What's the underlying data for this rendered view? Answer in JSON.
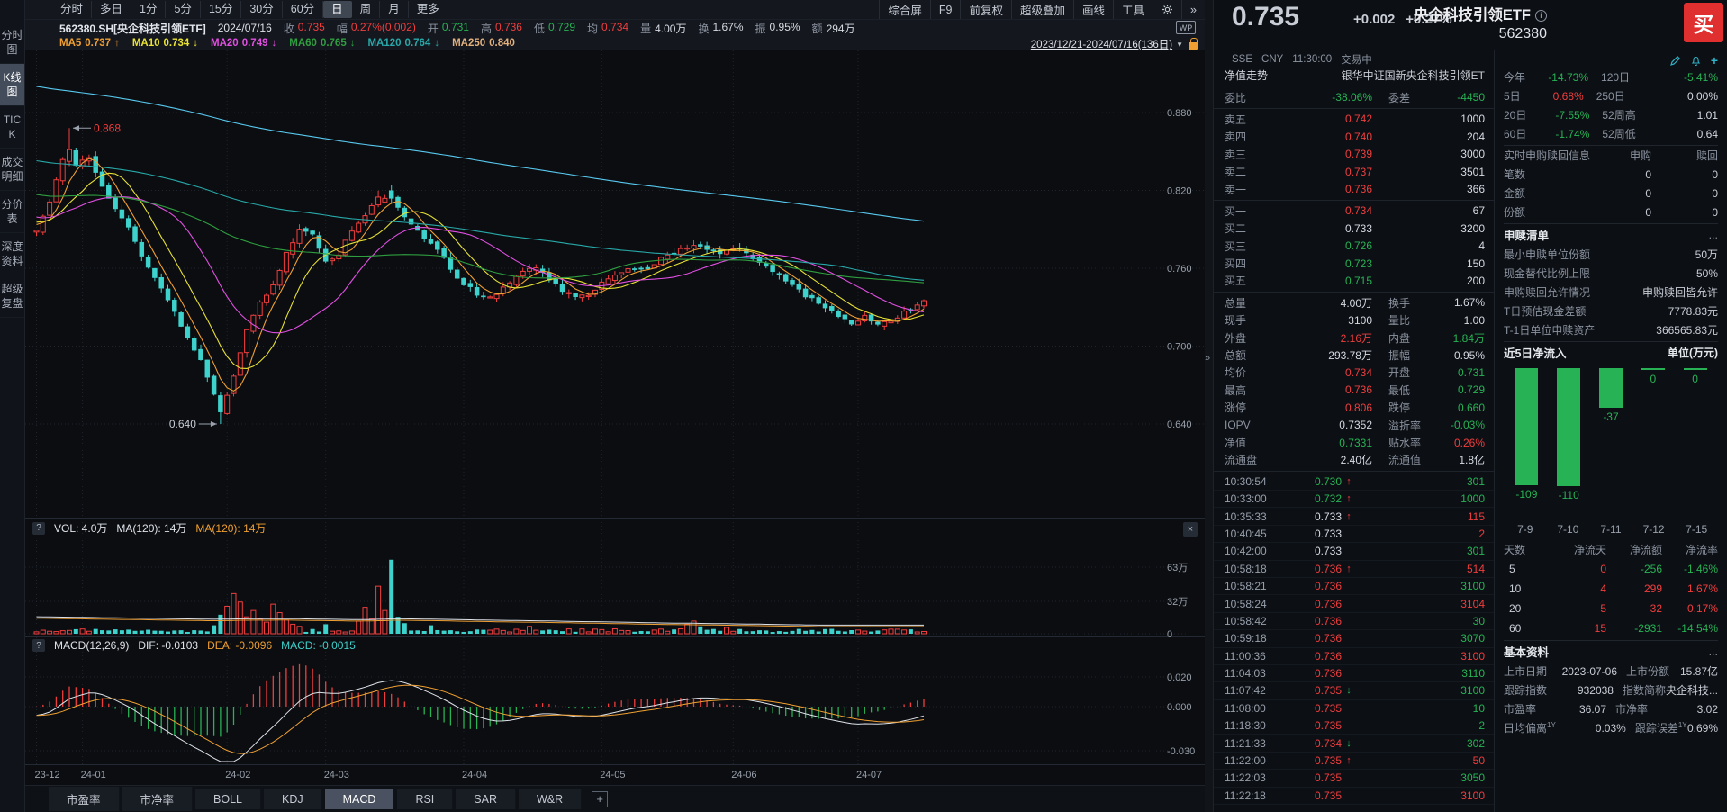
{
  "colors": {
    "red": "#f03e3e",
    "green": "#27b355",
    "teal": "#3ed2cc",
    "link": "#35b8cf",
    "orange": "#f0a032",
    "yellow": "#e8e234",
    "magenta": "#e14fe1",
    "ma_green": "#2f9e3f",
    "ma_teal": "#28a8a8",
    "ma_cyan": "#58c8ee",
    "peach": "#e2b27e",
    "white": "#d6dae2",
    "dim": "#8b93a0"
  },
  "glyphs": {
    "expander": "»",
    "plus": "+",
    "close": "×",
    "help": "?",
    "tri_down": "▼",
    "arrow_up": "↑",
    "arrow_down": "↓",
    "chev": "»"
  },
  "app": {
    "name_cn": "央企科技引领ETF",
    "code": "562380",
    "buy_label": "买",
    "price": "0.735",
    "change": "+0.002",
    "change_pct": "+0.27%",
    "exchange": "SSE",
    "currency": "CNY",
    "time": "11:30:00",
    "status": "交易中"
  },
  "sidebar": {
    "items": [
      {
        "label": "分时图",
        "active": false
      },
      {
        "label": "K线图",
        "active": true
      },
      {
        "label": "TICK",
        "active": false
      },
      {
        "label": "成交明细",
        "active": false
      },
      {
        "label": "分价表",
        "active": false
      },
      {
        "label": "深度资料",
        "active": false
      },
      {
        "label": "超级复盘",
        "active": false
      }
    ]
  },
  "topbar": {
    "period_tabs": [
      {
        "label": "分时",
        "active": false
      },
      {
        "label": "多日",
        "active": false
      },
      {
        "label": "1分",
        "active": false
      },
      {
        "label": "5分",
        "active": false
      },
      {
        "label": "15分",
        "active": false
      },
      {
        "label": "30分",
        "active": false
      },
      {
        "label": "60分",
        "active": false
      },
      {
        "label": "日",
        "active": true
      },
      {
        "label": "周",
        "active": false
      },
      {
        "label": "月",
        "active": false
      },
      {
        "label": "更多",
        "active": false
      }
    ],
    "right_menu": [
      "综合屏",
      "F9",
      "前复权",
      "超级叠加",
      "画线",
      "工具"
    ],
    "info_symbol": "562380.SH[央企科技引领ETF]",
    "info_date": "2024/07/16",
    "info_fields": [
      {
        "k": "收",
        "v": "0.735",
        "c": "red"
      },
      {
        "k": "幅",
        "v": "0.27%(0.002)",
        "c": "red"
      },
      {
        "k": "开",
        "v": "0.731",
        "c": "green"
      },
      {
        "k": "高",
        "v": "0.736",
        "c": "red"
      },
      {
        "k": "低",
        "v": "0.729",
        "c": "green"
      },
      {
        "k": "均",
        "v": "0.734",
        "c": "red"
      },
      {
        "k": "量",
        "v": "4.00万",
        "c": "white"
      },
      {
        "k": "换",
        "v": "1.67%",
        "c": "white"
      },
      {
        "k": "振",
        "v": "0.95%",
        "c": "white"
      },
      {
        "k": "额",
        "v": "294万",
        "c": "white"
      }
    ],
    "ma_labels": [
      {
        "name": "MA5",
        "value": "0.737",
        "arrow": "up",
        "c": "orange"
      },
      {
        "name": "MA10",
        "value": "0.734",
        "arrow": "down",
        "c": "yellow"
      },
      {
        "name": "MA20",
        "value": "0.749",
        "arrow": "down",
        "c": "magenta"
      },
      {
        "name": "MA60",
        "value": "0.765",
        "arrow": "down",
        "c": "ma_green"
      },
      {
        "name": "MA120",
        "value": "0.764",
        "arrow": "down",
        "c": "ma_teal"
      },
      {
        "name": "MA250",
        "value": "0.840",
        "arrow": "",
        "c": "peach"
      }
    ],
    "wp_badge": "WP",
    "date_range": "2023/12/21-2024/07/16(136日)"
  },
  "chart_data": {
    "type": "candlestick",
    "symbol": "562380.SH",
    "bars": 136,
    "x_ticks": [
      "23-12",
      "24-01",
      "24-02",
      "24-03",
      "24-04",
      "24-05",
      "24-06",
      "24-07"
    ],
    "x_tick_bar_index": [
      0,
      7,
      29,
      44,
      65,
      86,
      106,
      125
    ],
    "price_axis": [
      "0.880",
      "0.820",
      "0.760",
      "0.700",
      "0.640"
    ],
    "price_axis_values": [
      0.88,
      0.82,
      0.76,
      0.7,
      0.64
    ],
    "annotations": {
      "high": {
        "bar": 5,
        "price": 0.868,
        "label": "0.868"
      },
      "low": {
        "bar": 28,
        "price": 0.64,
        "label": "0.640"
      }
    },
    "last_bar": {
      "open": 0.731,
      "high": 0.736,
      "low": 0.729,
      "close": 0.735
    },
    "ma_current": {
      "MA5": 0.737,
      "MA10": 0.734,
      "MA20": 0.749,
      "MA60": 0.765,
      "MA120": 0.764,
      "MA250": 0.84
    },
    "price_anchors": [
      [
        0,
        0.79
      ],
      [
        2,
        0.812
      ],
      [
        4,
        0.845
      ],
      [
        5,
        0.852
      ],
      [
        6,
        0.84
      ],
      [
        8,
        0.845
      ],
      [
        10,
        0.822
      ],
      [
        13,
        0.8
      ],
      [
        16,
        0.77
      ],
      [
        19,
        0.745
      ],
      [
        22,
        0.716
      ],
      [
        25,
        0.688
      ],
      [
        27,
        0.662
      ],
      [
        28,
        0.648
      ],
      [
        30,
        0.676
      ],
      [
        32,
        0.712
      ],
      [
        34,
        0.733
      ],
      [
        36,
        0.748
      ],
      [
        38,
        0.772
      ],
      [
        40,
        0.79
      ],
      [
        42,
        0.786
      ],
      [
        44,
        0.766
      ],
      [
        46,
        0.77
      ],
      [
        48,
        0.79
      ],
      [
        50,
        0.802
      ],
      [
        52,
        0.812
      ],
      [
        54,
        0.815
      ],
      [
        56,
        0.798
      ],
      [
        58,
        0.788
      ],
      [
        60,
        0.778
      ],
      [
        62,
        0.768
      ],
      [
        64,
        0.752
      ],
      [
        66,
        0.744
      ],
      [
        68,
        0.737
      ],
      [
        70,
        0.74
      ],
      [
        72,
        0.748
      ],
      [
        74,
        0.758
      ],
      [
        76,
        0.762
      ],
      [
        78,
        0.752
      ],
      [
        80,
        0.743
      ],
      [
        82,
        0.738
      ],
      [
        84,
        0.74
      ],
      [
        86,
        0.748
      ],
      [
        88,
        0.756
      ],
      [
        90,
        0.76
      ],
      [
        92,
        0.758
      ],
      [
        94,
        0.764
      ],
      [
        96,
        0.77
      ],
      [
        98,
        0.774
      ],
      [
        100,
        0.778
      ],
      [
        102,
        0.775
      ],
      [
        104,
        0.77
      ],
      [
        106,
        0.776
      ],
      [
        108,
        0.772
      ],
      [
        110,
        0.765
      ],
      [
        112,
        0.758
      ],
      [
        114,
        0.75
      ],
      [
        116,
        0.743
      ],
      [
        118,
        0.736
      ],
      [
        120,
        0.729
      ],
      [
        122,
        0.723
      ],
      [
        124,
        0.718
      ],
      [
        126,
        0.722
      ],
      [
        128,
        0.717
      ],
      [
        130,
        0.72
      ],
      [
        132,
        0.726
      ],
      [
        134,
        0.731
      ],
      [
        135,
        0.735
      ]
    ],
    "volume_spikes": {
      "27": 8,
      "28": 18,
      "29": 26,
      "30": 38,
      "31": 30,
      "32": 16,
      "33": 22,
      "34": 14,
      "35": 11,
      "36": 28,
      "37": 20,
      "38": 13,
      "39": 9,
      "40": 7,
      "44": 9,
      "49": 12,
      "50": 25,
      "51": 14,
      "52": 45,
      "53": 22,
      "54": 70,
      "55": 16,
      "56": 10,
      "60": 8,
      "75": 7,
      "99": 9,
      "100": 12,
      "101": 7,
      "105": 6
    },
    "volume_axis": [
      "63万",
      "32万",
      "0"
    ],
    "macd_axis": [
      "0.020",
      "0.000",
      "-0.030"
    ],
    "macd_current": {
      "DIF": -0.0103,
      "DEA": -0.0096,
      "MACD": -0.0015
    }
  },
  "vol_header": {
    "help": "?",
    "vol": "VOL: 4.0万",
    "ma_white": "MA(120): 14万",
    "ma_orange": "MA(120): 14万"
  },
  "macd_header": {
    "help": "?",
    "title": "MACD(12,26,9)",
    "dif": "DIF: -0.0103",
    "dea": "DEA: -0.0096",
    "macd": "MACD: -0.0015"
  },
  "bottom_tabs": [
    {
      "label": "市盈率",
      "active": false
    },
    {
      "label": "市净率",
      "active": false
    },
    {
      "label": "BOLL",
      "active": false
    },
    {
      "label": "KDJ",
      "active": false
    },
    {
      "label": "MACD",
      "active": true
    },
    {
      "label": "RSI",
      "active": false
    },
    {
      "label": "SAR",
      "active": false
    },
    {
      "label": "W&R",
      "active": false
    }
  ],
  "quote": {
    "fund_nav_label": "净值走势",
    "fund_name": "银华中证国新央企科技引领ET",
    "weibi_label": "委比",
    "weibi": "-38.06%",
    "weicha_label": "委差",
    "weicha": "-4450",
    "asks": [
      {
        "label": "卖五",
        "price": "0.742",
        "pc": "red",
        "size": "1000"
      },
      {
        "label": "卖四",
        "price": "0.740",
        "pc": "red",
        "size": "204"
      },
      {
        "label": "卖三",
        "price": "0.739",
        "pc": "red",
        "size": "3000"
      },
      {
        "label": "卖二",
        "price": "0.737",
        "pc": "red",
        "size": "3501"
      },
      {
        "label": "卖一",
        "price": "0.736",
        "pc": "red",
        "size": "366"
      }
    ],
    "bids": [
      {
        "label": "买一",
        "price": "0.734",
        "pc": "red",
        "size": "67"
      },
      {
        "label": "买二",
        "price": "0.733",
        "pc": "white",
        "size": "3200"
      },
      {
        "label": "买三",
        "price": "0.726",
        "pc": "green",
        "size": "4"
      },
      {
        "label": "买四",
        "price": "0.723",
        "pc": "green",
        "size": "150"
      },
      {
        "label": "买五",
        "price": "0.715",
        "pc": "green",
        "size": "200"
      }
    ],
    "stats": [
      {
        "l1": "总量",
        "v1": "4.00万",
        "c1": "white",
        "l2": "换手",
        "v2": "1.67%",
        "c2": "white"
      },
      {
        "l1": "现手",
        "v1": "3100",
        "c1": "white",
        "l2": "量比",
        "v2": "1.00",
        "c2": "white"
      },
      {
        "l1": "外盘",
        "v1": "2.16万",
        "c1": "red",
        "l2": "内盘",
        "v2": "1.84万",
        "c2": "green"
      },
      {
        "l1": "总额",
        "v1": "293.78万",
        "c1": "white",
        "l2": "振幅",
        "v2": "0.95%",
        "c2": "white"
      },
      {
        "l1": "均价",
        "v1": "0.734",
        "c1": "red",
        "l2": "开盘",
        "v2": "0.731",
        "c2": "green"
      },
      {
        "l1": "最高",
        "v1": "0.736",
        "c1": "red",
        "l2": "最低",
        "v2": "0.729",
        "c2": "green"
      },
      {
        "l1": "涨停",
        "v1": "0.806",
        "c1": "red",
        "l2": "跌停",
        "v2": "0.660",
        "c2": "green"
      },
      {
        "l1": "IOPV",
        "v1": "0.7352",
        "c1": "white",
        "l2": "溢折率",
        "v2": "-0.03%",
        "c2": "green"
      },
      {
        "l1": "净值",
        "v1": "0.7331",
        "c1": "green",
        "l2": "贴水率",
        "v2": "0.26%",
        "c2": "red"
      },
      {
        "l1": "流通盘",
        "v1": "2.40亿",
        "c1": "white",
        "l2": "流通值",
        "v2": "1.8亿",
        "c2": "white"
      }
    ],
    "ticks": [
      {
        "t": "10:30:54",
        "p": "0.730",
        "pc": "green",
        "a": "up",
        "s": "301",
        "sc": "green"
      },
      {
        "t": "10:33:00",
        "p": "0.732",
        "pc": "green",
        "a": "up",
        "s": "1000",
        "sc": "green"
      },
      {
        "t": "10:35:33",
        "p": "0.733",
        "pc": "white",
        "a": "up",
        "s": "115",
        "sc": "red"
      },
      {
        "t": "10:40:45",
        "p": "0.733",
        "pc": "white",
        "a": "",
        "s": "2",
        "sc": "red"
      },
      {
        "t": "10:42:00",
        "p": "0.733",
        "pc": "white",
        "a": "",
        "s": "301",
        "sc": "green"
      },
      {
        "t": "10:58:18",
        "p": "0.736",
        "pc": "red",
        "a": "up",
        "s": "514",
        "sc": "red"
      },
      {
        "t": "10:58:21",
        "p": "0.736",
        "pc": "red",
        "a": "",
        "s": "3100",
        "sc": "green"
      },
      {
        "t": "10:58:24",
        "p": "0.736",
        "pc": "red",
        "a": "",
        "s": "3104",
        "sc": "red"
      },
      {
        "t": "10:58:42",
        "p": "0.736",
        "pc": "red",
        "a": "",
        "s": "30",
        "sc": "green"
      },
      {
        "t": "10:59:18",
        "p": "0.736",
        "pc": "red",
        "a": "",
        "s": "3070",
        "sc": "green"
      },
      {
        "t": "11:00:36",
        "p": "0.736",
        "pc": "red",
        "a": "",
        "s": "3100",
        "sc": "red"
      },
      {
        "t": "11:04:03",
        "p": "0.736",
        "pc": "red",
        "a": "",
        "s": "3110",
        "sc": "green"
      },
      {
        "t": "11:07:42",
        "p": "0.735",
        "pc": "red",
        "a": "down",
        "s": "3100",
        "sc": "green"
      },
      {
        "t": "11:08:00",
        "p": "0.735",
        "pc": "red",
        "a": "",
        "s": "10",
        "sc": "green"
      },
      {
        "t": "11:18:30",
        "p": "0.735",
        "pc": "red",
        "a": "",
        "s": "2",
        "sc": "green"
      },
      {
        "t": "11:21:33",
        "p": "0.734",
        "pc": "red",
        "a": "down",
        "s": "302",
        "sc": "green"
      },
      {
        "t": "11:22:00",
        "p": "0.735",
        "pc": "red",
        "a": "up",
        "s": "50",
        "sc": "red"
      },
      {
        "t": "11:22:03",
        "p": "0.735",
        "pc": "red",
        "a": "",
        "s": "3050",
        "sc": "green"
      },
      {
        "t": "11:22:18",
        "p": "0.735",
        "pc": "red",
        "a": "",
        "s": "3100",
        "sc": "red"
      }
    ]
  },
  "rpanel": {
    "returns": [
      {
        "l1": "今年",
        "v1": "-14.73%",
        "c1": "green",
        "l2": "120日",
        "v2": "-5.41%",
        "c2": "green"
      },
      {
        "l1": "5日",
        "v1": "0.68%",
        "c1": "red",
        "l2": "250日",
        "v2": "0.00%",
        "c2": "white"
      },
      {
        "l1": "20日",
        "v1": "-7.55%",
        "c1": "green",
        "l2": "52周高",
        "v2": "1.01",
        "c2": "white"
      },
      {
        "l1": "60日",
        "v1": "-1.74%",
        "c1": "green",
        "l2": "52周低",
        "v2": "0.64",
        "c2": "white"
      }
    ],
    "rt_section": {
      "title": "实时申购赎回信息",
      "col1": "申购",
      "col2": "赎回",
      "rows": [
        {
          "label": "笔数",
          "v1": "0",
          "v2": "0"
        },
        {
          "label": "金额",
          "v1": "0",
          "v2": "0"
        },
        {
          "label": "份额",
          "v1": "0",
          "v2": "0"
        }
      ]
    },
    "list_section": {
      "title": "申赎清单",
      "more": "...",
      "rows": [
        {
          "label": "最小申赎单位份额",
          "value": "50万"
        },
        {
          "label": "现金替代比例上限",
          "value": "50%"
        },
        {
          "label": "申购赎回允许情况",
          "value": "申购赎回皆允许"
        },
        {
          "label": "T日预估现金差额",
          "value": "7778.83元"
        },
        {
          "label": "T-1日单位申赎资产",
          "value": "366565.83元"
        }
      ]
    },
    "flow_section": {
      "title": "近5日净流入",
      "unit": "单位(万元)",
      "bars": [
        {
          "date": "7-9",
          "value": -109
        },
        {
          "date": "7-10",
          "value": -110
        },
        {
          "date": "7-11",
          "value": -37
        },
        {
          "date": "7-12",
          "value": 0
        },
        {
          "date": "7-15",
          "value": 0
        }
      ]
    },
    "flow_table": {
      "headers": [
        "天数",
        "净流天",
        "净流额",
        "净流率"
      ],
      "rows": [
        {
          "days": "5",
          "d": "0",
          "dc": "red",
          "amt": "-256",
          "ac": "green",
          "rate": "-1.46%",
          "rc": "green"
        },
        {
          "days": "10",
          "d": "4",
          "dc": "red",
          "amt": "299",
          "ac": "red",
          "rate": "1.67%",
          "rc": "red"
        },
        {
          "days": "20",
          "d": "5",
          "dc": "red",
          "amt": "32",
          "ac": "red",
          "rate": "0.17%",
          "rc": "red"
        },
        {
          "days": "60",
          "d": "15",
          "dc": "red",
          "amt": "-2931",
          "ac": "green",
          "rate": "-14.54%",
          "rc": "green"
        }
      ]
    },
    "basic_section": {
      "title": "基本资料",
      "more": "...",
      "rows": [
        {
          "l1": "上市日期",
          "v1": "2023-07-06",
          "c1": "white",
          "sup1": "",
          "l2": "上市份额",
          "v2": "15.87亿",
          "c2": "white",
          "sup2": ""
        },
        {
          "l1": "跟踪指数",
          "v1": "932038",
          "c1": "link",
          "sup1": "",
          "l2": "指数简称",
          "v2": "央企科技...",
          "c2": "white",
          "sup2": ""
        },
        {
          "l1": "市盈率",
          "v1": "36.07",
          "c1": "white",
          "sup1": "",
          "l2": "市净率",
          "v2": "3.02",
          "c2": "white",
          "sup2": ""
        },
        {
          "l1": "日均偏离",
          "v1": "0.03%",
          "c1": "white",
          "sup1": "1Y",
          "l2": "跟踪误差",
          "v2": "0.69%",
          "c2": "white",
          "sup2": "1Y"
        }
      ]
    }
  }
}
